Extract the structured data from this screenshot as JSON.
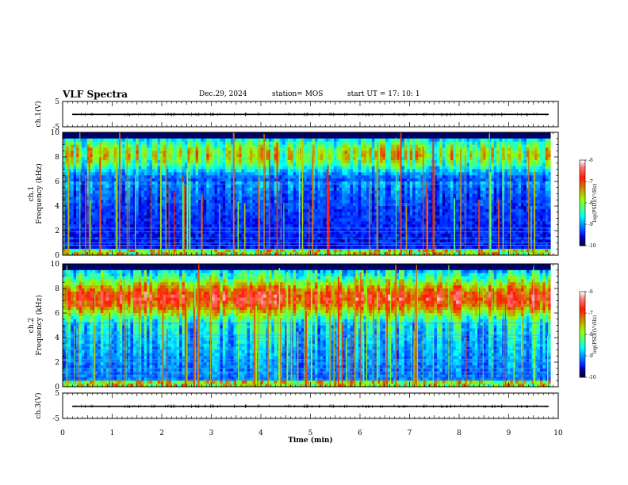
{
  "header": {
    "title": "VLF Spectra",
    "date": "Dec.29, 2024",
    "station": "station= MOS",
    "start": "start  UT =    17: 10: 1"
  },
  "chart_data": [
    {
      "type": "line",
      "panel": "ch1-waveform",
      "ylabel": "ch.1(V)",
      "ylim": [
        -5,
        5
      ],
      "yticks": [
        5,
        -5
      ],
      "xlim": [
        0,
        10
      ],
      "series": [
        {
          "values_description_level": -0.1
        }
      ]
    },
    {
      "type": "heatmap",
      "panel": "ch1-spectrogram",
      "ylabel_top": "ch.1",
      "ylabel": "Frequency (kHz)",
      "ylim": [
        0,
        10
      ],
      "yticks": [
        0,
        2,
        4,
        6,
        8,
        10
      ],
      "xlim": [
        0,
        9.85
      ],
      "colorbar": {
        "label": "log(PSD)(V²/Hz)",
        "range": [
          -10,
          -6
        ],
        "ticks": [
          -6,
          -7,
          -8,
          -9,
          -10
        ]
      },
      "seed": 7
    },
    {
      "type": "heatmap",
      "panel": "ch2-spectrogram",
      "ylabel_top": "ch.2",
      "ylabel": "Frequency (kHz)",
      "ylim": [
        0,
        10
      ],
      "yticks": [
        0,
        2,
        4,
        6,
        8,
        10
      ],
      "xlim": [
        0,
        9.85
      ],
      "colorbar": {
        "label": "log(PSD)(V²/Hz)",
        "range": [
          -10,
          -6
        ],
        "ticks": [
          -6,
          -7,
          -8,
          -9,
          -10
        ]
      },
      "seed": 13
    },
    {
      "type": "line",
      "panel": "ch3-waveform",
      "ylabel": "ch.3(V)",
      "ylim": [
        -5,
        5
      ],
      "yticks": [
        5,
        -5
      ],
      "xlim": [
        0,
        10
      ],
      "series": [
        {
          "values_description_level": -0.2
        }
      ]
    }
  ],
  "xaxis": {
    "label": "Time (min)",
    "ticks": [
      "0",
      "1",
      "2",
      "3",
      "4",
      "5",
      "6",
      "7",
      "8",
      "9",
      "10"
    ],
    "range": [
      0,
      10
    ]
  },
  "colors": {
    "low": "#000030",
    "mid": "#00e000",
    "high": "#ff0000",
    "top": "#ffffff"
  }
}
